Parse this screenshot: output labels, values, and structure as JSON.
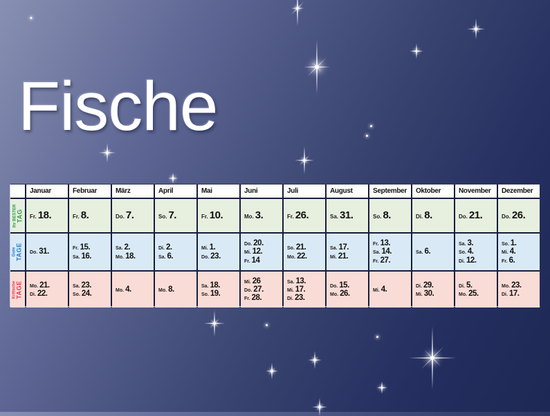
{
  "page": {
    "title": "Fische"
  },
  "table": {
    "row_labels": {
      "best": {
        "line1": "Ihr BESTER",
        "line2": "TAG"
      },
      "good": {
        "line1": "Gute",
        "line2": "TAGE"
      },
      "critical": {
        "line1": "Kritische",
        "line2": "TAGE"
      }
    },
    "colors": {
      "best_bg": "#e7efdf",
      "good_bg": "#d9eaf6",
      "critical_bg": "#fadcd6",
      "best_label": "#2f9e44",
      "good_label": "#1d7fd1",
      "critical_label": "#e03a4e",
      "header_bg": "#fdfdfb",
      "grid": "#171d3c"
    },
    "months": [
      {
        "name": "Januar",
        "best": [
          {
            "d": "Fr.",
            "n": "18."
          }
        ],
        "good": [
          {
            "d": "Do.",
            "n": "31."
          }
        ],
        "critical": [
          {
            "d": "Mo.",
            "n": "21."
          },
          {
            "d": "Di.",
            "n": "22."
          }
        ]
      },
      {
        "name": "Februar",
        "best": [
          {
            "d": "Fr.",
            "n": "8."
          }
        ],
        "good": [
          {
            "d": "Fr.",
            "n": "15."
          },
          {
            "d": "Sa.",
            "n": "16."
          }
        ],
        "critical": [
          {
            "d": "Sa.",
            "n": "23."
          },
          {
            "d": "So.",
            "n": "24."
          }
        ]
      },
      {
        "name": "März",
        "best": [
          {
            "d": "Do.",
            "n": "7."
          }
        ],
        "good": [
          {
            "d": "Sa.",
            "n": "2."
          },
          {
            "d": "Mo.",
            "n": "18."
          }
        ],
        "critical": [
          {
            "d": "Mo.",
            "n": "4."
          }
        ]
      },
      {
        "name": "April",
        "best": [
          {
            "d": "So.",
            "n": "7."
          }
        ],
        "good": [
          {
            "d": "Di.",
            "n": "2."
          },
          {
            "d": "Sa.",
            "n": "6."
          }
        ],
        "critical": [
          {
            "d": "Mo.",
            "n": "8."
          }
        ]
      },
      {
        "name": "Mai",
        "best": [
          {
            "d": "Fr.",
            "n": "10."
          }
        ],
        "good": [
          {
            "d": "Mi.",
            "n": "1."
          },
          {
            "d": "Do.",
            "n": "23."
          }
        ],
        "critical": [
          {
            "d": "Sa.",
            "n": "18."
          },
          {
            "d": "So.",
            "n": "19."
          }
        ]
      },
      {
        "name": "Juni",
        "best": [
          {
            "d": "Mo.",
            "n": "3."
          }
        ],
        "good": [
          {
            "d": "Do.",
            "n": "20."
          },
          {
            "d": "Mi.",
            "n": "12."
          },
          {
            "d": "Fr.",
            "n": "14"
          }
        ],
        "critical": [
          {
            "d": "Mi.",
            "n": "26"
          },
          {
            "d": "Do.",
            "n": "27."
          },
          {
            "d": "Fr.",
            "n": "28."
          }
        ]
      },
      {
        "name": "Juli",
        "best": [
          {
            "d": "Fr.",
            "n": "26."
          }
        ],
        "good": [
          {
            "d": "So.",
            "n": "21."
          },
          {
            "d": "Mo.",
            "n": "22."
          }
        ],
        "critical": [
          {
            "d": "Sa.",
            "n": "13."
          },
          {
            "d": "Mi.",
            "n": "17."
          },
          {
            "d": "Di.",
            "n": "23."
          }
        ]
      },
      {
        "name": "August",
        "best": [
          {
            "d": "Sa.",
            "n": "31."
          }
        ],
        "good": [
          {
            "d": "Sa.",
            "n": "17."
          },
          {
            "d": "Mi.",
            "n": "21."
          }
        ],
        "critical": [
          {
            "d": "Do.",
            "n": "15."
          },
          {
            "d": "Mo.",
            "n": "26."
          }
        ]
      },
      {
        "name": "September",
        "best": [
          {
            "d": "So.",
            "n": "8."
          }
        ],
        "good": [
          {
            "d": "Fr.",
            "n": "13."
          },
          {
            "d": "Sa.",
            "n": "14."
          },
          {
            "d": "Fr.",
            "n": "27."
          }
        ],
        "critical": [
          {
            "d": "Mi.",
            "n": "4."
          }
        ]
      },
      {
        "name": "Oktober",
        "best": [
          {
            "d": "Di.",
            "n": "8."
          }
        ],
        "good": [
          {
            "d": "Sa.",
            "n": "6."
          }
        ],
        "critical": [
          {
            "d": "Di.",
            "n": "29."
          },
          {
            "d": "Mi.",
            "n": "30."
          }
        ]
      },
      {
        "name": "November",
        "best": [
          {
            "d": "Do.",
            "n": "21."
          }
        ],
        "good": [
          {
            "d": "Sa.",
            "n": "3."
          },
          {
            "d": "So.",
            "n": "4."
          },
          {
            "d": "Di.",
            "n": "12."
          }
        ],
        "critical": [
          {
            "d": "Di.",
            "n": "5."
          },
          {
            "d": "Mo.",
            "n": "25."
          }
        ]
      },
      {
        "name": "Dezember",
        "best": [
          {
            "d": "Do.",
            "n": "26."
          }
        ],
        "good": [
          {
            "d": "So.",
            "n": "1."
          },
          {
            "d": "Mi.",
            "n": "4."
          },
          {
            "d": "Fr.",
            "n": "6."
          }
        ],
        "critical": [
          {
            "d": "Mo.",
            "n": "23."
          },
          {
            "d": "Di.",
            "n": "17."
          }
        ]
      }
    ]
  }
}
